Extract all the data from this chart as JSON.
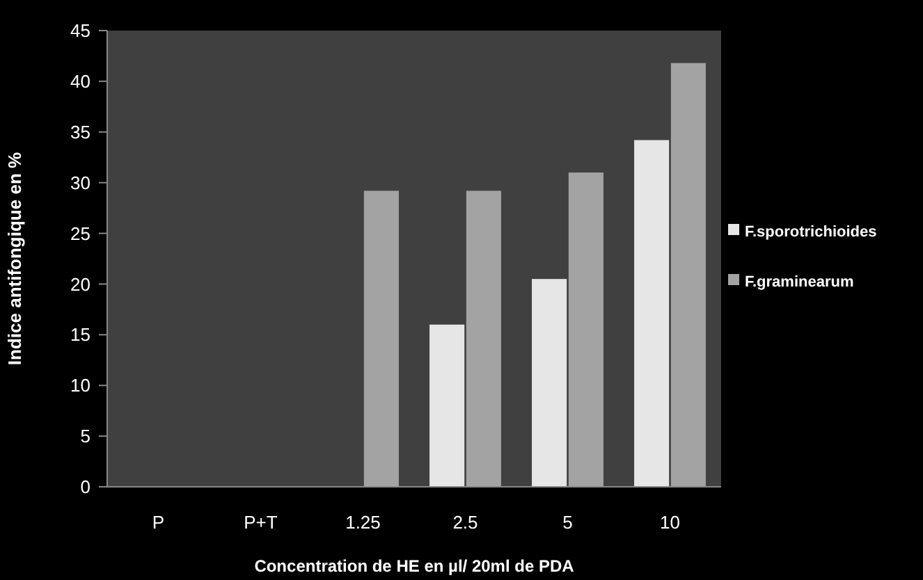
{
  "chart_data": {
    "type": "bar",
    "xlabel": "Concentration  de HE en µl/ 20ml de PDA",
    "ylabel": "Indice antifongique en %",
    "categories": [
      "P",
      "P+T",
      "1.25",
      "2.5",
      "5",
      "10"
    ],
    "series": [
      {
        "name": "F.sporotrichioides",
        "color": "#e6e6e6",
        "values": [
          0,
          0,
          0,
          16,
          20.5,
          34.2
        ]
      },
      {
        "name": "F.graminearum",
        "color": "#a3a3a3",
        "values": [
          0,
          0,
          29.2,
          29.2,
          31,
          41.8
        ]
      }
    ],
    "ylim": [
      0,
      45
    ],
    "yticks": [
      0,
      5,
      10,
      15,
      20,
      25,
      30,
      35,
      40,
      45
    ],
    "grid": false,
    "legend": "right"
  }
}
